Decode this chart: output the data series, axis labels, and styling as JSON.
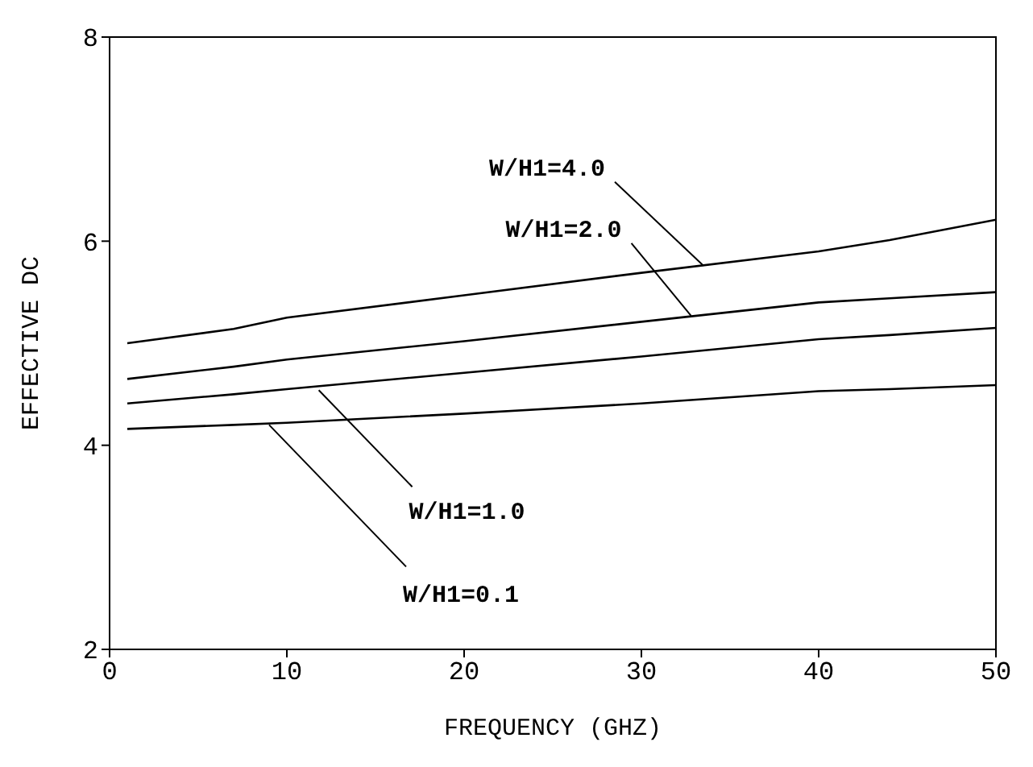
{
  "chart_data": {
    "type": "line",
    "xlabel": "FREQUENCY (GHZ)",
    "ylabel": "EFFECTIVE DC",
    "xlim": [
      0,
      50
    ],
    "xticks": [
      0,
      10,
      20,
      30,
      40,
      50
    ],
    "ylim": [
      2,
      8
    ],
    "yticks": [
      2,
      4,
      6,
      8
    ],
    "marker": "none",
    "line_style": "solid",
    "x": [
      1,
      7,
      10,
      20,
      30,
      40,
      44,
      50
    ],
    "series": [
      {
        "color": "#000000",
        "values": [
          5.0,
          5.14,
          5.25,
          5.47,
          5.69,
          5.9,
          6.01,
          6.21
        ]
      },
      {
        "color": "#000000",
        "values": [
          4.65,
          4.77,
          4.84,
          5.02,
          5.21,
          5.4,
          5.44,
          5.5
        ]
      },
      {
        "color": "#000000",
        "values": [
          4.41,
          4.5,
          4.55,
          4.71,
          4.87,
          5.04,
          5.08,
          5.15
        ]
      },
      {
        "color": "#000000",
        "values": [
          4.16,
          4.2,
          4.22,
          4.31,
          4.41,
          4.53,
          4.55,
          4.59
        ]
      }
    ],
    "annotations": [
      {
        "text": "W/H1=4.0",
        "x": 33.5,
        "y": 5.76
      },
      {
        "text": "W/H1=2.0",
        "x": 32.8,
        "y": 5.27
      },
      {
        "text": "W/H1=1.0",
        "x": 11.8,
        "y": 4.54
      },
      {
        "text": "W/H1=0.1",
        "x": 9,
        "y": 4.2
      }
    ]
  }
}
